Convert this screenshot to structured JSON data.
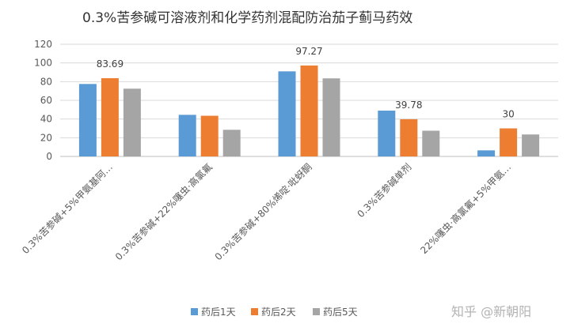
{
  "chart_data": {
    "type": "bar",
    "title": "0.3%苦参碱可溶液剂和化学药剂混配防治茄子蓟马药效",
    "xlabel": "",
    "ylabel": "",
    "ylim": [
      0,
      120
    ],
    "yticks": [
      0,
      20,
      40,
      60,
      80,
      100,
      120
    ],
    "grid": true,
    "legend_position": "bottom",
    "categories": [
      "0.3%苦参碱+5%甲氨基阿…",
      "0.3%苦参碱+22%噻虫·高氯氟",
      "0.3%苦参碱+80%烯啶·吡蚜酮",
      "0.3%苦参碱单剂",
      "22%噻虫·高氯氟+5%甲氨…"
    ],
    "series": [
      {
        "name": "药后1天",
        "color": "#5b9bd5",
        "values": [
          77.5,
          44.5,
          91,
          49,
          6.5
        ]
      },
      {
        "name": "药后2天",
        "color": "#ed7d31",
        "values": [
          83.69,
          43.5,
          97.27,
          39.78,
          30
        ]
      },
      {
        "name": "药后5天",
        "color": "#a5a5a5",
        "values": [
          72.5,
          28.5,
          83.5,
          27.5,
          23.5
        ]
      }
    ],
    "data_labels": [
      {
        "series": 1,
        "category": 0,
        "text": "83.69"
      },
      {
        "series": 1,
        "category": 2,
        "text": "97.27"
      },
      {
        "series": 1,
        "category": 3,
        "text": "39.78"
      },
      {
        "series": 1,
        "category": 4,
        "text": "30"
      }
    ]
  },
  "watermark": "知乎 @新朝阳"
}
